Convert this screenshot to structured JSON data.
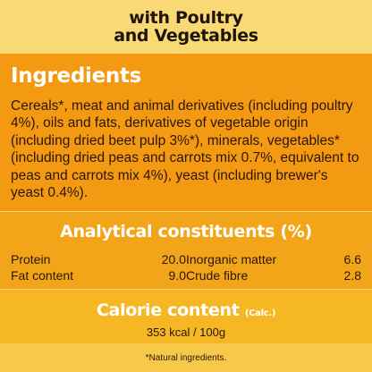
{
  "header": {
    "line1": "with Poultry",
    "line2": "and Vegetables"
  },
  "ingredients": {
    "title": "Ingredients",
    "text": "Cereals*, meat and animal derivatives (including poultry 4%), oils and fats, derivatives of vegetable origin (including dried beet pulp 3%*), minerals, vegetables* (including dried peas and carrots mix 0.7%, equivalent to peas and carrots mix 4%), yeast (including brewer's yeast 0.4%)."
  },
  "analytical": {
    "title": "Analytical constituents (%)",
    "left": [
      {
        "label": "Protein",
        "value": "20.0"
      },
      {
        "label": "Fat content",
        "value": "9.0"
      }
    ],
    "right": [
      {
        "label": "Inorganic matter",
        "value": "6.6"
      },
      {
        "label": "Crude fibre",
        "value": "2.8"
      }
    ]
  },
  "calorie": {
    "title": "Calorie content",
    "calc": "(Calc.)",
    "value": "353 kcal / 100g"
  },
  "footnote": "*Natural ingredients.",
  "colors": {
    "top_band": "#f9d876",
    "ingredients_bg": "#f49a12",
    "analytical_bg": "#f3a51a",
    "calorie_bg": "#f5b824",
    "footnote_bg": "#f8c84a",
    "heading_text": "#ffffff",
    "body_text": "#2a1606"
  }
}
